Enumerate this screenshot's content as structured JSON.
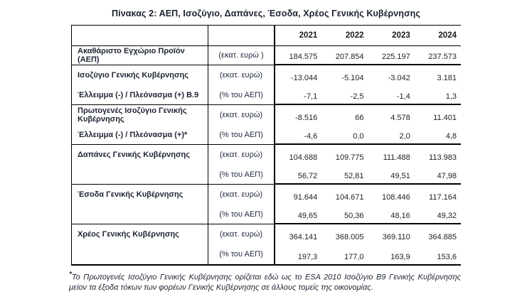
{
  "title": "Πίνακας 2: ΑΕΠ, Ισοζύγιο, Δαπάνες, Έσοδα, Χρέος Γενικής Κυβέρνησης",
  "table": {
    "years": [
      "2021",
      "2022",
      "2023",
      "2024"
    ],
    "groups": [
      {
        "rows": [
          {
            "label": "Ακαθάριστο Εγχώριο Προϊόν (ΑΕΠ)",
            "unit": "(εκατ. ευρώ )",
            "values": [
              "184.575",
              "207.854",
              "225.197",
              "237.573"
            ]
          }
        ]
      },
      {
        "rows": [
          {
            "label": "Ισοζύγιο Γενικής Κυβέρνησης",
            "unit": "(εκατ. ευρώ)",
            "values": [
              "-13.044",
              "-5.104",
              "-3.042",
              "3.181"
            ]
          },
          {
            "label": "Έλλειμμα (-) / Πλεόνασμα (+) B.9",
            "unit": "(% του ΑΕΠ)",
            "values": [
              "-7,1",
              "-2,5",
              "-1,4",
              "1,3"
            ]
          }
        ]
      },
      {
        "rows": [
          {
            "label": "Πρωτογενές Ισοζύγιο Γενικής Κυβέρνησης",
            "unit": "(εκατ. ευρώ)",
            "values": [
              "-8.516",
              "66",
              "4.578",
              "11.401"
            ]
          },
          {
            "label": "Έλλειμμα (-) / Πλεόνασμα (+)*",
            "unit": "(% του ΑΕΠ)",
            "values": [
              "-4,6",
              "0,0",
              "2,0",
              "4,8"
            ]
          }
        ]
      },
      {
        "rows": [
          {
            "label": "Δαπάνες Γενικής Κυβέρνησης",
            "unit": "(εκατ. ευρώ)",
            "values": [
              "104.688",
              "109.775",
              "111.488",
              "113.983"
            ]
          },
          {
            "label": "",
            "unit": "(% του ΑΕΠ)",
            "values": [
              "56,72",
              "52,81",
              "49,51",
              "47,98"
            ]
          }
        ]
      },
      {
        "rows": [
          {
            "label": "Έσοδα Γενικής Κυβέρνησης",
            "unit": "(εκατ. ευρώ)",
            "values": [
              "91.644",
              "104.671",
              "108.446",
              "117.164"
            ]
          },
          {
            "label": "",
            "unit": "(% του ΑΕΠ)",
            "values": [
              "49,65",
              "50,36",
              "48,16",
              "49,32"
            ]
          }
        ]
      },
      {
        "rows": [
          {
            "label": "Χρέος Γενικής Κυβέρνησης",
            "unit": "(εκατ. ευρώ)",
            "values": [
              "364.141",
              "368.005",
              "369.110",
              "364.885"
            ]
          },
          {
            "label": "",
            "unit": "(% του ΑΕΠ)",
            "values": [
              "197,3",
              "177,0",
              "163,9",
              "153,6"
            ]
          }
        ]
      }
    ]
  },
  "footnote": {
    "marker": "*",
    "text": "Το Πρωτογενές Ισοζύγιο Γενικής Κυβέρνησης ορίζεται εδώ ως το ESA 2010 Ισοζύγιο B9 Γενικής Κυβέρνησης μείον τα έξοδα τόκων των φορέων Γενικής Κυβέρνησης σε άλλους τομείς της οικονομίας."
  },
  "colors": {
    "ink": "#1d2433",
    "line": "#000000",
    "background": "#ffffff"
  }
}
